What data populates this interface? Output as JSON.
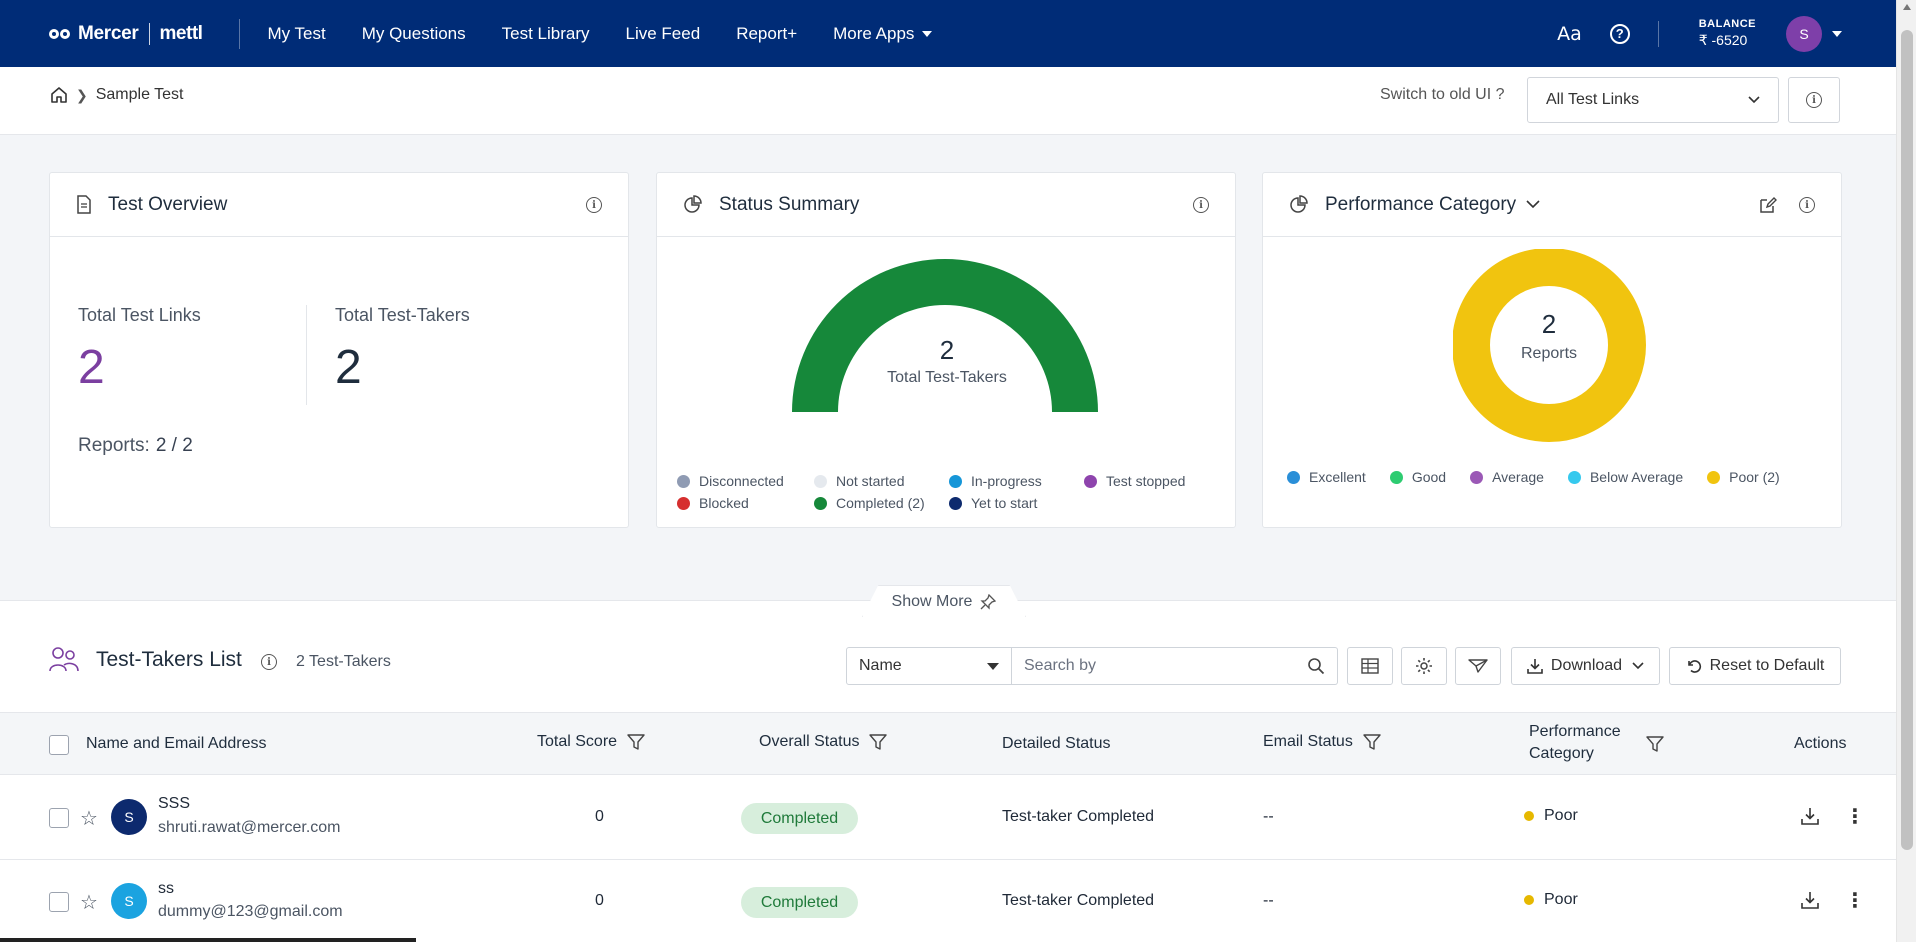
{
  "nav": {
    "brand_mercer": "Mercer",
    "brand_mettl": "mettl",
    "items": [
      "My Test",
      "My Questions",
      "Test Library",
      "Live Feed",
      "Report+"
    ],
    "more_apps": "More Apps",
    "font_toggle": "Aa",
    "help": "?",
    "balance_label": "BALANCE",
    "balance_value": "₹ -6520",
    "avatar_initial": "S"
  },
  "breadcrumb": {
    "current": "Sample Test",
    "switch_ui": "Switch to old UI ?",
    "links_select": "All Test Links"
  },
  "overview": {
    "title": "Test Overview",
    "total_links_label": "Total Test Links",
    "total_links": "2",
    "total_takers_label": "Total Test-Takers",
    "total_takers": "2",
    "reports_label": "Reports:",
    "reports_value": "2 / 2"
  },
  "status_summary": {
    "title": "Status Summary",
    "center_value": "2",
    "center_label": "Total Test-Takers",
    "legend": [
      {
        "label": "Disconnected",
        "color": "#8f9bb3"
      },
      {
        "label": "Not started",
        "color": "#e5e9ee"
      },
      {
        "label": "In-progress",
        "color": "#1696d8"
      },
      {
        "label": "Test stopped",
        "color": "#8e44ad"
      },
      {
        "label": "Blocked",
        "color": "#d62f2f"
      },
      {
        "label": "Completed (2)",
        "color": "#16883a"
      },
      {
        "label": "Yet to start",
        "color": "#0d2a6e"
      }
    ]
  },
  "performance": {
    "title": "Performance Category",
    "center_value": "2",
    "center_label": "Reports",
    "legend": [
      {
        "label": "Excellent",
        "color": "#2a8fd8"
      },
      {
        "label": "Good",
        "color": "#2ecc71"
      },
      {
        "label": "Average",
        "color": "#9b59b6"
      },
      {
        "label": "Below Average",
        "color": "#36c9ee"
      },
      {
        "label": "Poor (2)",
        "color": "#f1c40f"
      }
    ]
  },
  "show_more": "Show More",
  "list": {
    "title": "Test-Takers List",
    "count": "2 Test-Takers",
    "filter_field": "Name",
    "search_placeholder": "Search by",
    "download": "Download",
    "reset": "Reset to Default",
    "columns": {
      "name": "Name and Email Address",
      "score": "Total Score",
      "overall": "Overall Status",
      "detailed": "Detailed Status",
      "email": "Email Status",
      "perf_line1": "Performance",
      "perf_line2": "Category",
      "actions": "Actions"
    },
    "rows": [
      {
        "initial": "S",
        "avatar_color": "#0d2a6e",
        "name": "SSS",
        "email": "shruti.rawat@mercer.com",
        "score": "0",
        "overall": "Completed",
        "detailed": "Test-taker Completed",
        "email_status": "--",
        "performance": "Poor"
      },
      {
        "initial": "S",
        "avatar_color": "#1ba3e0",
        "name": "ss",
        "email": "dummy@123@gmail.com",
        "score": "0",
        "overall": "Completed",
        "detailed": "Test-taker Completed",
        "email_status": "--",
        "performance": "Poor"
      }
    ]
  }
}
